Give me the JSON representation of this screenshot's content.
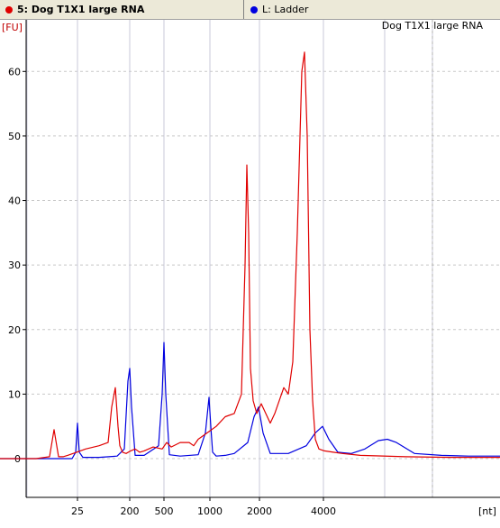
{
  "tabs": [
    {
      "label": "5: Dog T1X1 large RNA",
      "color": "#e00000",
      "active": true
    },
    {
      "label": "L: Ladder",
      "color": "#0000e0",
      "active": false
    }
  ],
  "chart_data": {
    "type": "line",
    "title": "Dog T1X1 large RNA",
    "ylabel": "[FU]",
    "xlabel": "[nt]",
    "ylim": [
      -6,
      68
    ],
    "y_ticks": [
      0,
      10,
      20,
      30,
      40,
      50,
      60
    ],
    "x_tick_labels": [
      "25",
      "200",
      "500",
      "1000",
      "2000",
      "4000"
    ],
    "grid": true,
    "series": [
      {
        "name": "5: Dog T1X1 large RNA",
        "color": "#e00000",
        "x": [
          0,
          10,
          20,
          40,
          55,
          60,
          65,
          70,
          75,
          85,
          95,
          110,
          120,
          124,
          128,
          131,
          133,
          136,
          140,
          145,
          150,
          155,
          160,
          170,
          180,
          185,
          190,
          200,
          210,
          215,
          220,
          230,
          240,
          250,
          260,
          268,
          272,
          274,
          276,
          278,
          281,
          285,
          290,
          295,
          300,
          305,
          310,
          315,
          320,
          325,
          330,
          335,
          338,
          341,
          344,
          347,
          350,
          354,
          360,
          370,
          380,
          400,
          450,
          500,
          540,
          555
        ],
        "y": [
          0,
          0,
          0,
          0,
          0.3,
          4.5,
          0.3,
          0.3,
          0.5,
          1,
          1.5,
          2,
          2.5,
          8,
          11,
          5,
          2,
          1,
          0.8,
          1.2,
          1.5,
          1.0,
          1.2,
          1.8,
          1.5,
          2.5,
          1.8,
          2.5,
          2.5,
          2,
          3,
          4,
          5,
          6.5,
          7,
          10,
          30,
          45.5,
          35,
          14,
          9,
          7,
          8.5,
          7,
          5.5,
          7,
          9,
          11,
          10,
          15,
          35,
          60,
          63,
          50,
          20,
          9,
          3,
          1.5,
          1.2,
          1,
          0.8,
          0.5,
          0.3,
          0.2,
          0.2,
          0.2
        ]
      },
      {
        "name": "L: Ladder",
        "color": "#0000e0",
        "x": [
          0,
          40,
          80,
          84,
          86,
          88,
          92,
          100,
          110,
          130,
          138,
          142,
          144,
          146,
          150,
          160,
          176,
          180,
          182,
          184,
          188,
          200,
          220,
          228,
          232,
          234,
          236,
          240,
          250,
          260,
          275,
          282,
          287,
          292,
          300,
          320,
          340,
          350,
          358,
          365,
          375,
          390,
          405,
          420,
          430,
          440,
          460,
          490,
          520,
          555
        ],
        "y": [
          0,
          0,
          0,
          1,
          5.5,
          1,
          0.2,
          0.2,
          0.2,
          0.4,
          1.5,
          12,
          14,
          8,
          0.5,
          0.5,
          2,
          10,
          18,
          10,
          0.6,
          0.4,
          0.6,
          4,
          9.5,
          5,
          1,
          0.4,
          0.5,
          0.8,
          2.5,
          6.5,
          8,
          4,
          0.8,
          0.8,
          2,
          4,
          5,
          3,
          1,
          0.8,
          1.5,
          2.8,
          3,
          2.5,
          0.8,
          0.5,
          0.4,
          0.4
        ]
      }
    ]
  }
}
